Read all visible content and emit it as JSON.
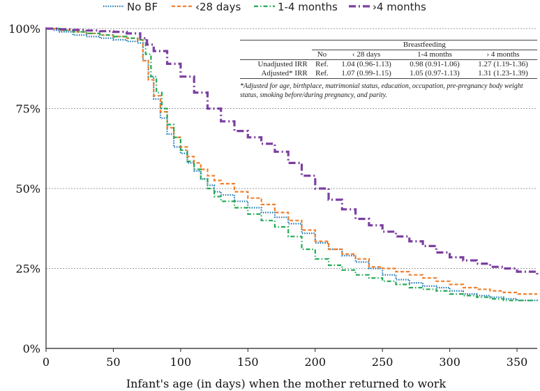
{
  "chart_data": {
    "type": "line",
    "title": "",
    "xlabel": "Infant's age (in days) when the mother returned to work",
    "ylabel": "",
    "xlim": [
      0,
      365
    ],
    "ylim": [
      0,
      100
    ],
    "xticks": [
      0,
      50,
      100,
      150,
      200,
      250,
      300,
      350
    ],
    "yticks": [
      0,
      25,
      50,
      75,
      100
    ],
    "ytick_labels": [
      "0%",
      "25%",
      "50%",
      "75%",
      "100%"
    ],
    "grid": "horizontal dotted",
    "legend_position": "top",
    "series": [
      {
        "name": "No BF",
        "color": "#1f77b4",
        "dash": "dotted",
        "points": [
          [
            0,
            100
          ],
          [
            5,
            99.5
          ],
          [
            10,
            99
          ],
          [
            20,
            98
          ],
          [
            30,
            97.5
          ],
          [
            40,
            97
          ],
          [
            50,
            96.5
          ],
          [
            60,
            96
          ],
          [
            68,
            95.5
          ],
          [
            72,
            90
          ],
          [
            76,
            85
          ],
          [
            80,
            78
          ],
          [
            85,
            72
          ],
          [
            90,
            67
          ],
          [
            95,
            63
          ],
          [
            100,
            61
          ],
          [
            105,
            58
          ],
          [
            110,
            55.5
          ],
          [
            115,
            53
          ],
          [
            120,
            51
          ],
          [
            125,
            49
          ],
          [
            130,
            48
          ],
          [
            140,
            46
          ],
          [
            150,
            44
          ],
          [
            160,
            42.5
          ],
          [
            170,
            41
          ],
          [
            180,
            39
          ],
          [
            190,
            36
          ],
          [
            200,
            33
          ],
          [
            210,
            31
          ],
          [
            220,
            29
          ],
          [
            230,
            27
          ],
          [
            240,
            25
          ],
          [
            250,
            23
          ],
          [
            260,
            21.5
          ],
          [
            270,
            20.5
          ],
          [
            280,
            19.5
          ],
          [
            290,
            19
          ],
          [
            300,
            18
          ],
          [
            310,
            17
          ],
          [
            320,
            16.5
          ],
          [
            330,
            16
          ],
          [
            340,
            15.5
          ],
          [
            350,
            15
          ],
          [
            365,
            14.5
          ]
        ]
      },
      {
        "name": "‹28 days",
        "color": "#f08030",
        "dash": "dashed",
        "points": [
          [
            0,
            100
          ],
          [
            10,
            99.5
          ],
          [
            20,
            99
          ],
          [
            30,
            98.5
          ],
          [
            40,
            98
          ],
          [
            50,
            97.5
          ],
          [
            60,
            97
          ],
          [
            68,
            96.5
          ],
          [
            72,
            90
          ],
          [
            76,
            84
          ],
          [
            80,
            79
          ],
          [
            85,
            74
          ],
          [
            90,
            69
          ],
          [
            95,
            66
          ],
          [
            100,
            63
          ],
          [
            105,
            60
          ],
          [
            110,
            58
          ],
          [
            115,
            56
          ],
          [
            120,
            54
          ],
          [
            125,
            52.5
          ],
          [
            130,
            51.5
          ],
          [
            140,
            49
          ],
          [
            150,
            47
          ],
          [
            160,
            45
          ],
          [
            170,
            42.5
          ],
          [
            180,
            40
          ],
          [
            190,
            37
          ],
          [
            200,
            33.5
          ],
          [
            210,
            31
          ],
          [
            220,
            29.5
          ],
          [
            230,
            28
          ],
          [
            240,
            25.5
          ],
          [
            250,
            25
          ],
          [
            260,
            24
          ],
          [
            270,
            23
          ],
          [
            280,
            22
          ],
          [
            290,
            21
          ],
          [
            300,
            20
          ],
          [
            310,
            19
          ],
          [
            320,
            18.5
          ],
          [
            330,
            18
          ],
          [
            340,
            17.5
          ],
          [
            350,
            17
          ],
          [
            365,
            17
          ]
        ]
      },
      {
        "name": "1-4 months",
        "color": "#22aa55",
        "dash": "dashdot",
        "points": [
          [
            0,
            100
          ],
          [
            10,
            99.5
          ],
          [
            20,
            99
          ],
          [
            30,
            98.5
          ],
          [
            40,
            98
          ],
          [
            50,
            97.5
          ],
          [
            60,
            97
          ],
          [
            70,
            96.5
          ],
          [
            74,
            92
          ],
          [
            78,
            85
          ],
          [
            82,
            80
          ],
          [
            86,
            75
          ],
          [
            90,
            70
          ],
          [
            95,
            66
          ],
          [
            100,
            62
          ],
          [
            105,
            58.5
          ],
          [
            110,
            56
          ],
          [
            115,
            53
          ],
          [
            120,
            50
          ],
          [
            125,
            47.5
          ],
          [
            130,
            46
          ],
          [
            140,
            44
          ],
          [
            150,
            42
          ],
          [
            160,
            40
          ],
          [
            170,
            38
          ],
          [
            180,
            35
          ],
          [
            190,
            31
          ],
          [
            200,
            28
          ],
          [
            210,
            26
          ],
          [
            220,
            24.5
          ],
          [
            230,
            23
          ],
          [
            240,
            22
          ],
          [
            250,
            21
          ],
          [
            260,
            20
          ],
          [
            270,
            19
          ],
          [
            280,
            18.5
          ],
          [
            290,
            18
          ],
          [
            300,
            17
          ],
          [
            310,
            16.5
          ],
          [
            320,
            16
          ],
          [
            330,
            15.5
          ],
          [
            340,
            15
          ],
          [
            350,
            15
          ],
          [
            365,
            15
          ]
        ]
      },
      {
        "name": "›4 months",
        "color": "#7b3fa0",
        "dash": "longdashdot",
        "points": [
          [
            0,
            100
          ],
          [
            10,
            99.8
          ],
          [
            20,
            99.6
          ],
          [
            30,
            99.4
          ],
          [
            40,
            99.2
          ],
          [
            50,
            99
          ],
          [
            60,
            98.5
          ],
          [
            70,
            97
          ],
          [
            75,
            95
          ],
          [
            80,
            93
          ],
          [
            90,
            89
          ],
          [
            100,
            85
          ],
          [
            110,
            80
          ],
          [
            120,
            75
          ],
          [
            130,
            71
          ],
          [
            140,
            68
          ],
          [
            150,
            66
          ],
          [
            160,
            64
          ],
          [
            170,
            61.5
          ],
          [
            180,
            58
          ],
          [
            190,
            54
          ],
          [
            200,
            50
          ],
          [
            210,
            46.5
          ],
          [
            220,
            43.5
          ],
          [
            230,
            40.5
          ],
          [
            240,
            38.5
          ],
          [
            250,
            36.5
          ],
          [
            260,
            35
          ],
          [
            270,
            33.5
          ],
          [
            280,
            32
          ],
          [
            290,
            30
          ],
          [
            300,
            28.5
          ],
          [
            310,
            27.5
          ],
          [
            320,
            26.5
          ],
          [
            330,
            25.5
          ],
          [
            340,
            25
          ],
          [
            350,
            24
          ],
          [
            365,
            23
          ]
        ]
      }
    ]
  },
  "irr_table": {
    "group_header": "Breastfeeding",
    "columns": [
      "No",
      "‹ 28 days",
      "1-4 months",
      "› 4 months"
    ],
    "rows": [
      {
        "label": "Unadjusted IRR",
        "values": [
          "Ref.",
          "1.04 (0.96-1.13)",
          "0.98 (0.91-1.06)",
          "1.27 (1.19-1.36)"
        ]
      },
      {
        "label": "Adjusted* IRR",
        "values": [
          "Ref.",
          "1.07 (0.99-1.15)",
          "1.05 (0.97-1.13)",
          "1.31 (1.23-1.39)"
        ]
      }
    ],
    "footnote": "*Adjusted for age, birthplace, matrimonial status, education, occupation, pre-pregnancy body weight status, smoking before/during pregnancy, and parity."
  }
}
